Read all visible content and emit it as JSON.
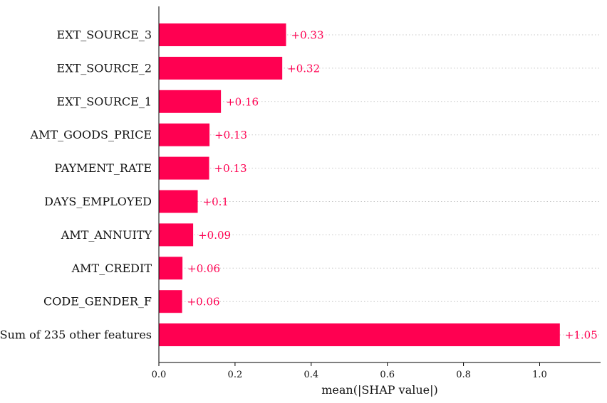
{
  "chart_data": {
    "type": "bar",
    "orientation": "horizontal",
    "title": "",
    "xlabel": "mean(|SHAP value|)",
    "ylabel": "",
    "xlim": [
      0,
      1.16
    ],
    "x_ticks": [
      0.0,
      0.2,
      0.4,
      0.6,
      0.8,
      1.0
    ],
    "x_tick_labels": [
      "0.0",
      "0.2",
      "0.4",
      "0.6",
      "0.8",
      "1.0"
    ],
    "grid": "dotted horizontal guide per row",
    "bar_color": "#ff0051",
    "label_color": "#ff0051",
    "categories": [
      "EXT_SOURCE_3",
      "EXT_SOURCE_2",
      "EXT_SOURCE_1",
      "AMT_GOODS_PRICE",
      "PAYMENT_RATE",
      "DAYS_EMPLOYED",
      "AMT_ANNUITY",
      "AMT_CREDIT",
      "CODE_GENDER_F",
      "Sum of 235 other features"
    ],
    "values": [
      0.334,
      0.324,
      0.163,
      0.133,
      0.132,
      0.102,
      0.09,
      0.062,
      0.061,
      1.053
    ],
    "value_labels": [
      "+0.33",
      "+0.32",
      "+0.16",
      "+0.13",
      "+0.13",
      "+0.1",
      "+0.09",
      "+0.06",
      "+0.06",
      "+1.05"
    ]
  }
}
